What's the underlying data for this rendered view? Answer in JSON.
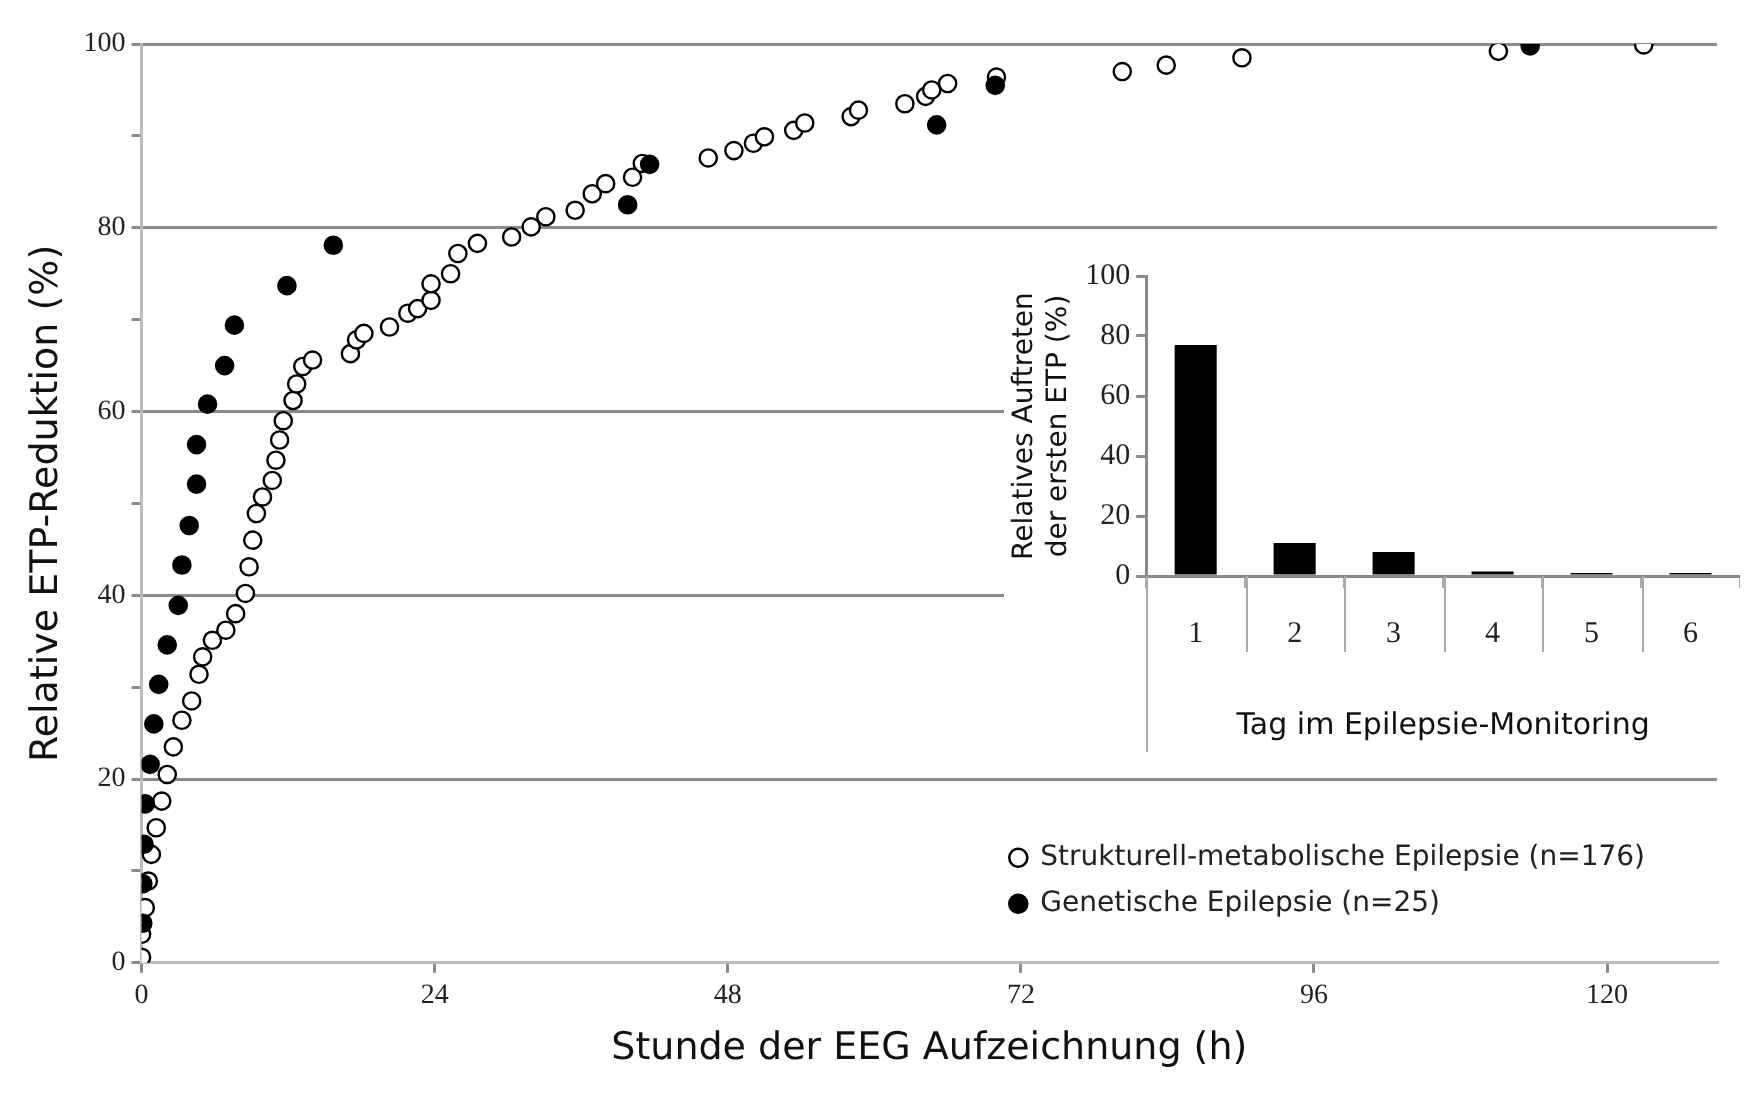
{
  "chart_data": [
    {
      "type": "scatter",
      "xlabel": "Stunde der EEG Aufzeichnung (h)",
      "ylabel": "Relative ETP-Reduktion (%)",
      "xlim": [
        0,
        129
      ],
      "xticks": [
        0,
        24,
        48,
        72,
        96,
        120
      ],
      "ylim": [
        0,
        100
      ],
      "yticks": [
        0,
        {
          "value": 10,
          "label": null
        },
        20,
        {
          "value": 30,
          "label": null
        },
        40,
        {
          "value": 50,
          "label": null
        },
        60,
        {
          "value": 70,
          "label": null
        },
        80,
        {
          "value": 90,
          "label": null
        },
        100
      ],
      "grid": "y",
      "legend": "bottom right",
      "marker": "circle",
      "series": [
        {
          "name": "Strukturell-metabolische Epilepsie (n=176)",
          "color": "#ffffff",
          "x": [
            0,
            0,
            0.3,
            0.55,
            0.8,
            1.2,
            1.65,
            2.1,
            2.6,
            3.3,
            4.1,
            4.7,
            5.0,
            5.8,
            6.9,
            7.7,
            8.5,
            8.8,
            9.1,
            9.4,
            9.9,
            10.7,
            11.0,
            11.3,
            11.6,
            12.4,
            12.7,
            13.2,
            14.0,
            17.1,
            17.6,
            18.2,
            20.3,
            21.8,
            22.6,
            23.7,
            23.7,
            25.3,
            25.9,
            27.5,
            30.3,
            31.9,
            33.1,
            35.5,
            36.9,
            38.0,
            40.2,
            41.0,
            46.4,
            48.5,
            50.1,
            51.0,
            53.4,
            54.3,
            58.1,
            58.7,
            62.5,
            64.2,
            64.7,
            66.0,
            70.0,
            80.3,
            83.9,
            90.1,
            111.1,
            123.0
          ],
          "values": [
            0.6,
            3.1,
            6.0,
            8.9,
            11.8,
            14.7,
            17.6,
            20.5,
            23.5,
            26.4,
            28.5,
            31.4,
            33.3,
            35.1,
            36.2,
            38.0,
            40.2,
            43.1,
            46.0,
            48.9,
            50.7,
            52.5,
            54.7,
            56.9,
            59.0,
            61.2,
            63.0,
            64.9,
            65.6,
            66.3,
            67.8,
            68.5,
            69.2,
            70.7,
            71.2,
            72.1,
            73.9,
            75.0,
            77.2,
            78.3,
            79.0,
            80.1,
            81.2,
            81.9,
            83.7,
            84.8,
            85.5,
            87.0,
            87.6,
            88.4,
            89.2,
            89.9,
            90.6,
            91.4,
            92.1,
            92.8,
            93.5,
            94.3,
            95.0,
            95.7,
            96.4,
            97.0,
            97.7,
            98.5,
            99.2,
            99.9
          ]
        },
        {
          "name": "Genetische Epilepsie (n=25)",
          "color": "#000000",
          "x": [
            0.1,
            0.1,
            0.2,
            0.3,
            0.7,
            1.0,
            1.4,
            2.1,
            3.0,
            3.3,
            3.9,
            4.5,
            4.5,
            5.4,
            6.8,
            7.6,
            11.9,
            15.7,
            39.8,
            41.6,
            65.1,
            69.9,
            113.7
          ],
          "values": [
            4.3,
            8.6,
            12.9,
            17.3,
            21.6,
            26.0,
            30.3,
            34.6,
            38.9,
            43.3,
            47.6,
            52.1,
            56.4,
            60.8,
            65.0,
            69.4,
            73.7,
            78.1,
            82.5,
            86.9,
            91.2,
            95.5,
            99.8
          ]
        }
      ]
    },
    {
      "type": "bar",
      "xlabel": "Tag im Epilepsie-Monitoring",
      "ylabel": "Relatives Auftreten\nder ersten ETP (%)",
      "categories": [
        "1",
        "2",
        "3",
        "4",
        "5",
        "6"
      ],
      "values": [
        77,
        11,
        8,
        1.5,
        1,
        0.5
      ],
      "color": "#000000",
      "ylim": [
        0,
        100
      ],
      "yticks": [
        0,
        20,
        40,
        60,
        80,
        100
      ]
    }
  ]
}
